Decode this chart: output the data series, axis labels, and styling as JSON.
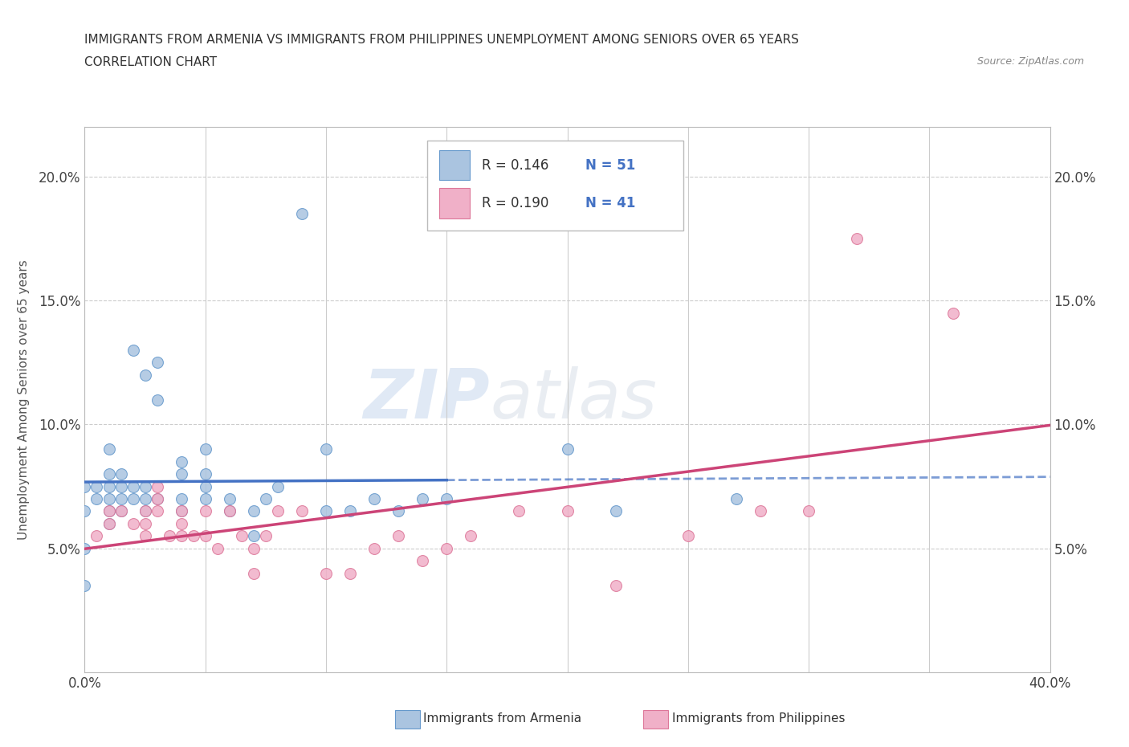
{
  "title_line1": "IMMIGRANTS FROM ARMENIA VS IMMIGRANTS FROM PHILIPPINES UNEMPLOYMENT AMONG SENIORS OVER 65 YEARS",
  "title_line2": "CORRELATION CHART",
  "source_text": "Source: ZipAtlas.com",
  "ylabel": "Unemployment Among Seniors over 65 years",
  "xlim": [
    0.0,
    0.4
  ],
  "ylim": [
    0.0,
    0.22
  ],
  "xticks": [
    0.0,
    0.05,
    0.1,
    0.15,
    0.2,
    0.25,
    0.3,
    0.35,
    0.4
  ],
  "xticklabels": [
    "0.0%",
    "",
    "",
    "",
    "",
    "",
    "",
    "",
    "40.0%"
  ],
  "yticks": [
    0.0,
    0.05,
    0.1,
    0.15,
    0.2
  ],
  "yticklabels": [
    "",
    "5.0%",
    "10.0%",
    "15.0%",
    "20.0%"
  ],
  "armenia_color": "#aac4e0",
  "armenia_edge": "#6699cc",
  "philippines_color": "#f0b0c8",
  "philippines_edge": "#dd7799",
  "line_armenia_color": "#4472c4",
  "line_philippines_color": "#cc4477",
  "legend_R_armenia": "0.146",
  "legend_N_armenia": "51",
  "legend_R_philippines": "0.190",
  "legend_N_philippines": "41",
  "armenia_x": [
    0.0,
    0.0,
    0.0,
    0.0,
    0.005,
    0.005,
    0.01,
    0.01,
    0.01,
    0.01,
    0.01,
    0.01,
    0.015,
    0.015,
    0.015,
    0.015,
    0.02,
    0.02,
    0.02,
    0.025,
    0.025,
    0.025,
    0.025,
    0.03,
    0.03,
    0.03,
    0.04,
    0.04,
    0.04,
    0.04,
    0.05,
    0.05,
    0.05,
    0.05,
    0.06,
    0.06,
    0.07,
    0.07,
    0.075,
    0.08,
    0.09,
    0.1,
    0.1,
    0.11,
    0.12,
    0.13,
    0.14,
    0.15,
    0.2,
    0.22,
    0.27
  ],
  "armenia_y": [
    0.035,
    0.05,
    0.065,
    0.075,
    0.07,
    0.075,
    0.06,
    0.065,
    0.07,
    0.075,
    0.08,
    0.09,
    0.065,
    0.07,
    0.075,
    0.08,
    0.07,
    0.075,
    0.13,
    0.065,
    0.07,
    0.075,
    0.12,
    0.07,
    0.11,
    0.125,
    0.065,
    0.07,
    0.08,
    0.085,
    0.07,
    0.075,
    0.08,
    0.09,
    0.065,
    0.07,
    0.055,
    0.065,
    0.07,
    0.075,
    0.185,
    0.065,
    0.09,
    0.065,
    0.07,
    0.065,
    0.07,
    0.07,
    0.09,
    0.065,
    0.07
  ],
  "philippines_x": [
    0.005,
    0.01,
    0.01,
    0.015,
    0.02,
    0.025,
    0.025,
    0.025,
    0.03,
    0.03,
    0.03,
    0.035,
    0.04,
    0.04,
    0.04,
    0.045,
    0.05,
    0.05,
    0.055,
    0.06,
    0.065,
    0.07,
    0.07,
    0.075,
    0.08,
    0.09,
    0.1,
    0.11,
    0.12,
    0.13,
    0.14,
    0.15,
    0.16,
    0.18,
    0.2,
    0.22,
    0.25,
    0.28,
    0.3,
    0.32,
    0.36
  ],
  "philippines_y": [
    0.055,
    0.06,
    0.065,
    0.065,
    0.06,
    0.055,
    0.06,
    0.065,
    0.065,
    0.07,
    0.075,
    0.055,
    0.055,
    0.06,
    0.065,
    0.055,
    0.055,
    0.065,
    0.05,
    0.065,
    0.055,
    0.04,
    0.05,
    0.055,
    0.065,
    0.065,
    0.04,
    0.04,
    0.05,
    0.055,
    0.045,
    0.05,
    0.055,
    0.065,
    0.065,
    0.035,
    0.055,
    0.065,
    0.065,
    0.175,
    0.145
  ]
}
